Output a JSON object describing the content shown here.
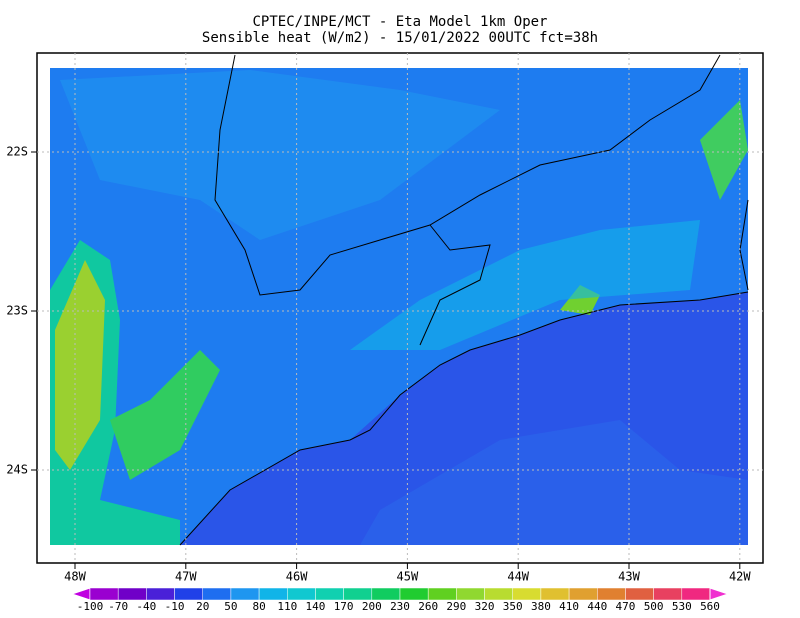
{
  "header": {
    "title": "CPTEC/INPE/MCT -  Eta Model 1km Oper",
    "subtitle": "Sensible heat (W/m2) - 15/01/2022 00UTC fct=38h"
  },
  "lon_ticks": [
    {
      "value": -48,
      "label": "48W"
    },
    {
      "value": -47,
      "label": "47W"
    },
    {
      "value": -46,
      "label": "46W"
    },
    {
      "value": -45,
      "label": "45W"
    },
    {
      "value": -44,
      "label": "44W"
    },
    {
      "value": -43,
      "label": "43W"
    },
    {
      "value": -42,
      "label": "42W"
    }
  ],
  "lat_ticks": [
    {
      "value": -22,
      "label": "22S"
    },
    {
      "value": -23,
      "label": "23S"
    },
    {
      "value": -24,
      "label": "24S"
    }
  ],
  "colorbar": {
    "levels": [
      -100,
      -70,
      -40,
      -10,
      20,
      50,
      80,
      110,
      140,
      170,
      200,
      230,
      260,
      290,
      320,
      350,
      380,
      410,
      440,
      470,
      500,
      530,
      560
    ],
    "colors": [
      "#c000e0",
      "#9a00d0",
      "#7000c8",
      "#4a20d8",
      "#2040e8",
      "#1e6ef0",
      "#1e96f0",
      "#10b4e8",
      "#10c8d0",
      "#10d0b0",
      "#10d090",
      "#10cc60",
      "#20cc30",
      "#60d020",
      "#90d830",
      "#b8dc30",
      "#d8dc30",
      "#e0c030",
      "#e0a030",
      "#e08030",
      "#e06040",
      "#e84060",
      "#f02880",
      "#f030d0"
    ]
  }
}
